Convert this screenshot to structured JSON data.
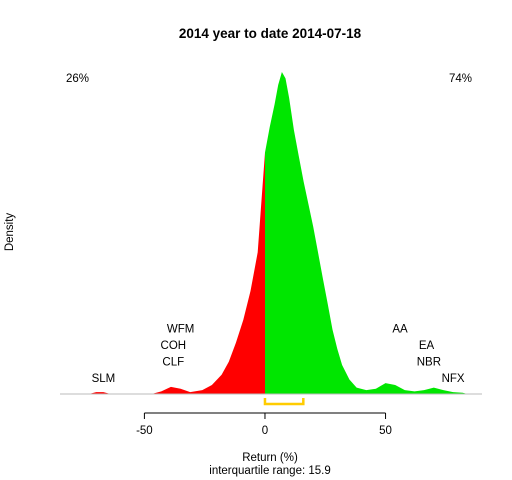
{
  "chart_data": {
    "type": "area",
    "title": "2014  year to date 2014-07-18",
    "xlabel": "Return (%)",
    "subxlabel": "interquartile range: 15.9",
    "ylabel": "Density",
    "xlim": [
      -85,
      90
    ],
    "x_ticks": [
      -50,
      0,
      50
    ],
    "x_tick_labels": [
      "-50",
      "0",
      "50"
    ],
    "grid": false,
    "split_at": 0,
    "negative_pct_label": "26%",
    "positive_pct_label": "74%",
    "colors": {
      "negative": "#ff0000",
      "positive": "#00e600",
      "negative_text": "#ff0000",
      "positive_text": "#008000",
      "iqr": "#ffcc00",
      "baseline": "#bbbbbb"
    },
    "density": [
      [
        -73,
        0
      ],
      [
        -70,
        0.006
      ],
      [
        -67,
        0.006
      ],
      [
        -64,
        0
      ],
      [
        -55,
        0
      ],
      [
        -47,
        0
      ],
      [
        -43,
        0.008
      ],
      [
        -39,
        0.022
      ],
      [
        -35,
        0.016
      ],
      [
        -31,
        0.006
      ],
      [
        -26,
        0.012
      ],
      [
        -22,
        0.028
      ],
      [
        -18,
        0.06
      ],
      [
        -15,
        0.1
      ],
      [
        -12,
        0.16
      ],
      [
        -9,
        0.23
      ],
      [
        -6,
        0.32
      ],
      [
        -3,
        0.44
      ],
      [
        0,
        0.75
      ],
      [
        2,
        0.83
      ],
      [
        4,
        0.9
      ],
      [
        5.5,
        0.96
      ],
      [
        7,
        1.0
      ],
      [
        8.5,
        0.98
      ],
      [
        10,
        0.92
      ],
      [
        12,
        0.82
      ],
      [
        14,
        0.74
      ],
      [
        16,
        0.66
      ],
      [
        18,
        0.59
      ],
      [
        20,
        0.52
      ],
      [
        22,
        0.44
      ],
      [
        24,
        0.36
      ],
      [
        26,
        0.28
      ],
      [
        28,
        0.2
      ],
      [
        30,
        0.14
      ],
      [
        32,
        0.09
      ],
      [
        35,
        0.045
      ],
      [
        38,
        0.02
      ],
      [
        42,
        0.012
      ],
      [
        46,
        0.016
      ],
      [
        50,
        0.034
      ],
      [
        54,
        0.028
      ],
      [
        58,
        0.012
      ],
      [
        62,
        0.008
      ],
      [
        66,
        0.012
      ],
      [
        70,
        0.02
      ],
      [
        74,
        0.012
      ],
      [
        78,
        0.006
      ],
      [
        82,
        0.004
      ],
      [
        84,
        0
      ]
    ],
    "iqr": [
      0,
      15.9
    ],
    "annotations": [
      {
        "text": "SLM",
        "x": -67,
        "stack": 0
      },
      {
        "text": "CLF",
        "x": -38,
        "stack": 1
      },
      {
        "text": "COH",
        "x": -38,
        "stack": 2
      },
      {
        "text": "WFM",
        "x": -35,
        "stack": 3
      },
      {
        "text": "NFX",
        "x": 78,
        "stack": 0
      },
      {
        "text": "NBR",
        "x": 68,
        "stack": 1
      },
      {
        "text": "EA",
        "x": 67,
        "stack": 2
      },
      {
        "text": "AA",
        "x": 56,
        "stack": 3
      }
    ]
  }
}
